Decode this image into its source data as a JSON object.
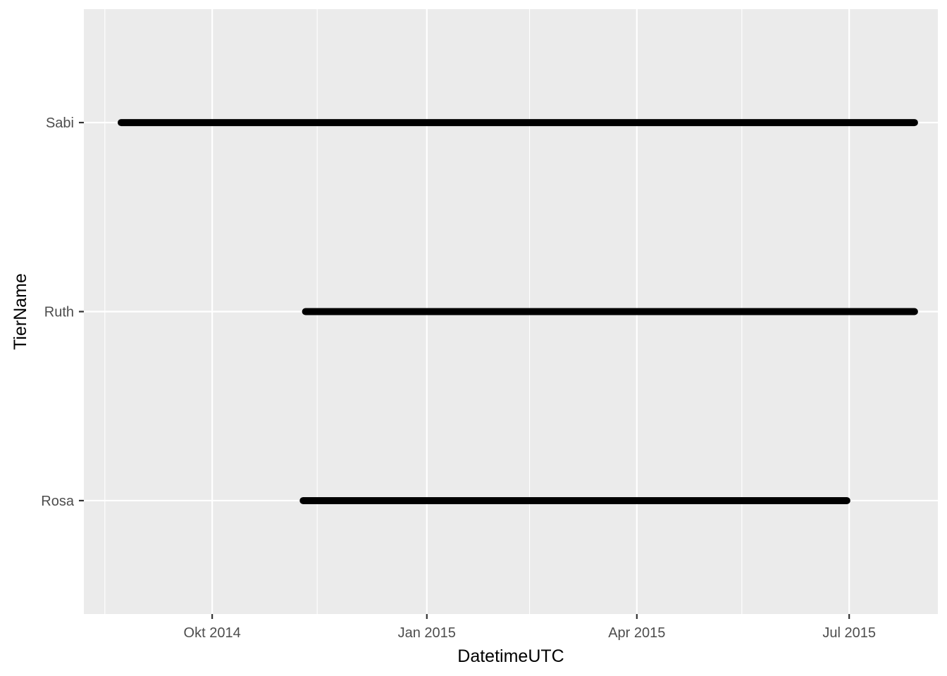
{
  "chart_data": {
    "type": "line",
    "title": "",
    "xlabel": "DatetimeUTC",
    "ylabel": "TierName",
    "x_scale": "date",
    "xlim": [
      "2014-08-07",
      "2015-08-08"
    ],
    "x_major_ticks": [
      {
        "date": "2014-10-01",
        "label": "Okt 2014"
      },
      {
        "date": "2015-01-01",
        "label": "Jan 2015"
      },
      {
        "date": "2015-04-01",
        "label": "Apr 2015"
      },
      {
        "date": "2015-07-01",
        "label": "Jul 2015"
      }
    ],
    "x_minor_ticks": [
      "2014-08-16",
      "2014-11-15",
      "2015-02-14",
      "2015-05-16"
    ],
    "categories": [
      "Rosa",
      "Ruth",
      "Sabi"
    ],
    "series": [
      {
        "category": "Sabi",
        "start": "2014-08-23",
        "end": "2015-07-29"
      },
      {
        "category": "Ruth",
        "start": "2014-11-10",
        "end": "2015-07-29"
      },
      {
        "category": "Rosa",
        "start": "2014-11-09",
        "end": "2015-06-30"
      }
    ],
    "grid": true,
    "legend": "none",
    "colors": {
      "panel": "#ebebeb",
      "grid": "#ffffff",
      "line": "#000000",
      "tick_text": "#4d4d4d",
      "tick_mark": "#333333"
    }
  }
}
